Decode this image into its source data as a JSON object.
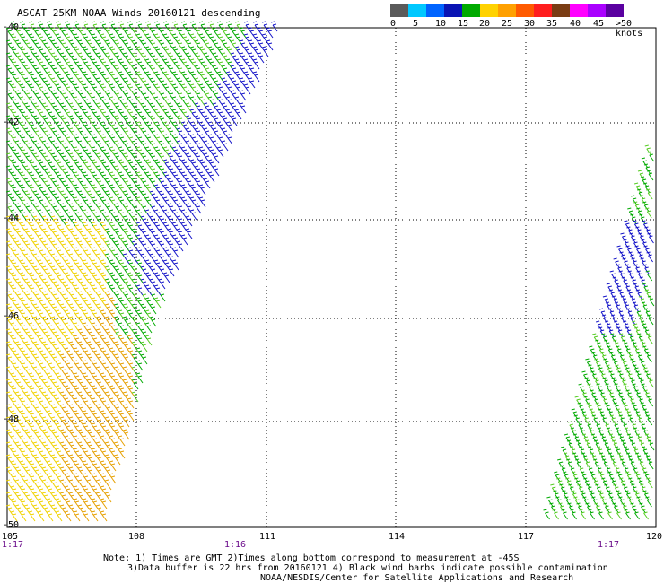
{
  "title": "ASCAT 25KM NOAA Winds 20160121 descending",
  "legend": {
    "colors": [
      "#5a5a5a",
      "#00c8ff",
      "#0064ff",
      "#0a14b4",
      "#00aa00",
      "#ffd200",
      "#ffa000",
      "#ff5a00",
      "#ff1e1e",
      "#7a3c14",
      "#ff00ff",
      "#aa00ff",
      "#5a00a0"
    ],
    "labels": [
      "0",
      "5",
      "10",
      "15",
      "20",
      "25",
      "30",
      "35",
      "40",
      "45",
      ">50 knots"
    ]
  },
  "lat_labels": [
    "-40",
    "-42",
    "-44",
    "-46",
    "-48",
    "-50"
  ],
  "lon_labels": [
    "105",
    "108",
    "111",
    "114",
    "117",
    "120"
  ],
  "time_labels": [
    "1:17",
    "1:16",
    "1:17"
  ],
  "notes": [
    "Note: 1) Times are GMT 2)Times along bottom correspond to measurement at -45S",
    "3)Data buffer is 22 hrs from 20160121 4) Black wind barbs indicate possible contamination",
    "NOAA/NESDIS/Center for Satellite Applications and Research"
  ],
  "wind_colors": {
    "slow": "#1414c8",
    "moderate": "#00aa00",
    "light": "#55cc22",
    "strong": "#f0d200",
    "stronger": "#e6a000"
  }
}
